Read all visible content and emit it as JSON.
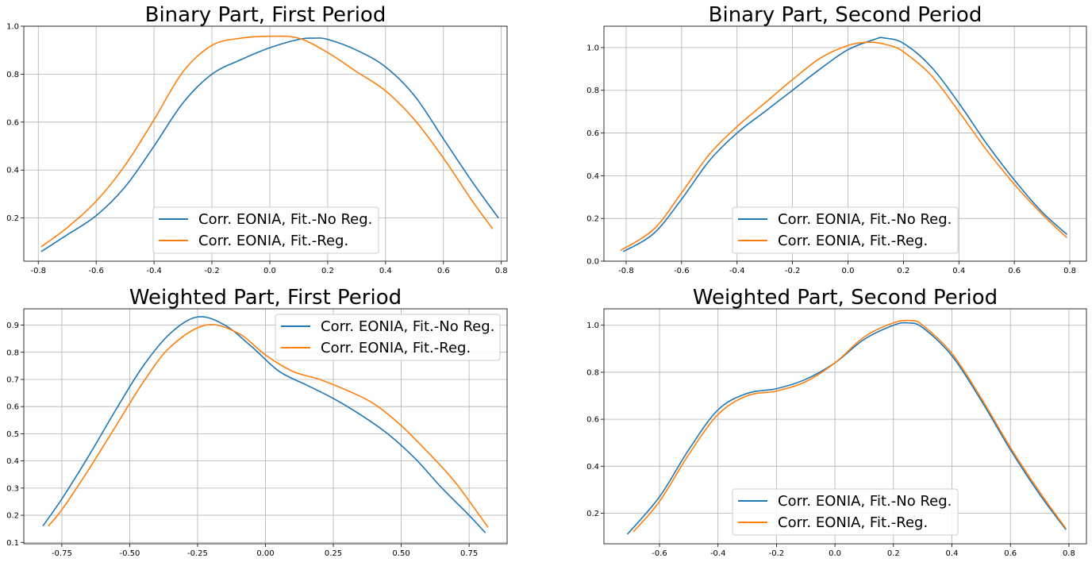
{
  "chart_data": [
    {
      "type": "line",
      "title": "Binary Part, First Period",
      "xlabel": "",
      "ylabel": "",
      "xlim": [
        -0.85,
        0.82
      ],
      "ylim": [
        0.02,
        1.0
      ],
      "xticks": [
        "-0.8",
        "-0.6",
        "-0.4",
        "-0.2",
        "0.0",
        "0.2",
        "0.4",
        "0.6",
        "0.8"
      ],
      "yticks": [
        "0.2",
        "0.4",
        "0.6",
        "0.8",
        "1.0"
      ],
      "grid": true,
      "legend_position": "lower center",
      "series": [
        {
          "name": "Corr. EONIA, Fit.-No Reg.",
          "color": "#1f77b4",
          "x": [
            -0.79,
            -0.7,
            -0.6,
            -0.5,
            -0.4,
            -0.3,
            -0.2,
            -0.1,
            0.0,
            0.1,
            0.15,
            0.2,
            0.3,
            0.4,
            0.5,
            0.6,
            0.7,
            0.79
          ],
          "y": [
            0.06,
            0.13,
            0.21,
            0.33,
            0.5,
            0.68,
            0.8,
            0.86,
            0.91,
            0.945,
            0.95,
            0.945,
            0.9,
            0.83,
            0.71,
            0.53,
            0.35,
            0.2
          ]
        },
        {
          "name": "Corr. EONIA, Fit.-Reg.",
          "color": "#ff7f0e",
          "x": [
            -0.79,
            -0.7,
            -0.6,
            -0.5,
            -0.4,
            -0.3,
            -0.2,
            -0.1,
            0.0,
            0.1,
            0.2,
            0.3,
            0.4,
            0.5,
            0.6,
            0.7,
            0.77
          ],
          "y": [
            0.08,
            0.16,
            0.27,
            0.42,
            0.61,
            0.81,
            0.92,
            0.95,
            0.958,
            0.95,
            0.89,
            0.81,
            0.73,
            0.61,
            0.45,
            0.27,
            0.155
          ]
        }
      ]
    },
    {
      "type": "line",
      "title": "Binary Part,  Second Period",
      "xlabel": "",
      "ylabel": "",
      "xlim": [
        -0.88,
        0.86
      ],
      "ylim": [
        0.0,
        1.1
      ],
      "xticks": [
        "-0.8",
        "-0.6",
        "-0.4",
        "-0.2",
        "0.0",
        "0.2",
        "0.4",
        "0.6",
        "0.8"
      ],
      "yticks": [
        "0.0",
        "0.2",
        "0.4",
        "0.6",
        "0.8",
        "1.0"
      ],
      "grid": true,
      "legend_position": "lower center",
      "series": [
        {
          "name": "Corr. EONIA, Fit.-No Reg.",
          "color": "#1f77b4",
          "x": [
            -0.81,
            -0.7,
            -0.6,
            -0.5,
            -0.4,
            -0.3,
            -0.2,
            -0.1,
            0.0,
            0.1,
            0.13,
            0.2,
            0.3,
            0.4,
            0.5,
            0.6,
            0.7,
            0.79
          ],
          "y": [
            0.045,
            0.13,
            0.29,
            0.47,
            0.6,
            0.7,
            0.8,
            0.9,
            0.99,
            1.04,
            1.045,
            1.02,
            0.91,
            0.74,
            0.55,
            0.38,
            0.23,
            0.125
          ]
        },
        {
          "name": "Corr. EONIA, Fit.-Reg.",
          "color": "#ff7f0e",
          "x": [
            -0.82,
            -0.7,
            -0.6,
            -0.5,
            -0.4,
            -0.3,
            -0.2,
            -0.1,
            0.0,
            0.08,
            0.15,
            0.2,
            0.3,
            0.4,
            0.5,
            0.6,
            0.7,
            0.79
          ],
          "y": [
            0.05,
            0.15,
            0.32,
            0.5,
            0.63,
            0.74,
            0.85,
            0.95,
            1.01,
            1.025,
            1.01,
            0.98,
            0.87,
            0.7,
            0.52,
            0.36,
            0.22,
            0.11
          ]
        }
      ]
    },
    {
      "type": "line",
      "title": "Weighted Part, First Period",
      "xlabel": "",
      "ylabel": "",
      "xlim": [
        -0.89,
        0.89
      ],
      "ylim": [
        0.095,
        0.96
      ],
      "xticks": [
        "-0.75",
        "-0.50",
        "-0.25",
        "0.00",
        "0.25",
        "0.50",
        "0.75"
      ],
      "yticks": [
        "0.1",
        "0.2",
        "0.3",
        "0.4",
        "0.5",
        "0.6",
        "0.7",
        "0.8",
        "0.9"
      ],
      "grid": true,
      "legend_position": "upper right",
      "series": [
        {
          "name": "Corr. EONIA, Fit.-No Reg.",
          "color": "#1f77b4",
          "x": [
            -0.82,
            -0.75,
            -0.65,
            -0.55,
            -0.45,
            -0.35,
            -0.25,
            -0.15,
            -0.05,
            0.05,
            0.15,
            0.25,
            0.35,
            0.45,
            0.55,
            0.65,
            0.75,
            0.81
          ],
          "y": [
            0.16,
            0.26,
            0.42,
            0.59,
            0.75,
            0.87,
            0.93,
            0.9,
            0.82,
            0.73,
            0.68,
            0.63,
            0.57,
            0.5,
            0.41,
            0.3,
            0.2,
            0.135
          ]
        },
        {
          "name": "Corr. EONIA, Fit.-Reg.",
          "color": "#ff7f0e",
          "x": [
            -0.8,
            -0.75,
            -0.65,
            -0.55,
            -0.45,
            -0.35,
            -0.22,
            -0.1,
            0.0,
            0.1,
            0.2,
            0.3,
            0.4,
            0.5,
            0.6,
            0.7,
            0.82
          ],
          "y": [
            0.16,
            0.22,
            0.37,
            0.53,
            0.69,
            0.82,
            0.9,
            0.87,
            0.79,
            0.73,
            0.7,
            0.66,
            0.61,
            0.53,
            0.43,
            0.32,
            0.155
          ]
        }
      ]
    },
    {
      "type": "line",
      "title": "Weighted Part, Second Period",
      "xlabel": "",
      "ylabel": "",
      "xlim": [
        -0.79,
        0.86
      ],
      "ylim": [
        0.07,
        1.07
      ],
      "xticks": [
        "-0.6",
        "-0.4",
        "-0.2",
        "0.0",
        "0.2",
        "0.4",
        "0.6",
        "0.8"
      ],
      "yticks": [
        "0.2",
        "0.4",
        "0.6",
        "0.8",
        "1.0"
      ],
      "grid": true,
      "legend_position": "lower center",
      "series": [
        {
          "name": "Corr. EONIA, Fit.-No Reg.",
          "color": "#1f77b4",
          "x": [
            -0.71,
            -0.6,
            -0.5,
            -0.4,
            -0.3,
            -0.2,
            -0.1,
            0.0,
            0.1,
            0.2,
            0.25,
            0.3,
            0.4,
            0.5,
            0.6,
            0.7,
            0.79
          ],
          "y": [
            0.11,
            0.27,
            0.47,
            0.64,
            0.71,
            0.73,
            0.77,
            0.84,
            0.94,
            1.0,
            1.01,
            0.99,
            0.87,
            0.68,
            0.47,
            0.28,
            0.13
          ]
        },
        {
          "name": "Corr. EONIA, Fit.-Reg.",
          "color": "#ff7f0e",
          "x": [
            -0.69,
            -0.6,
            -0.5,
            -0.4,
            -0.3,
            -0.2,
            -0.1,
            0.0,
            0.1,
            0.2,
            0.26,
            0.3,
            0.4,
            0.5,
            0.6,
            0.7,
            0.79
          ],
          "y": [
            0.12,
            0.25,
            0.45,
            0.62,
            0.7,
            0.72,
            0.76,
            0.84,
            0.95,
            1.01,
            1.02,
            1.0,
            0.88,
            0.69,
            0.48,
            0.29,
            0.135
          ]
        }
      ]
    }
  ]
}
